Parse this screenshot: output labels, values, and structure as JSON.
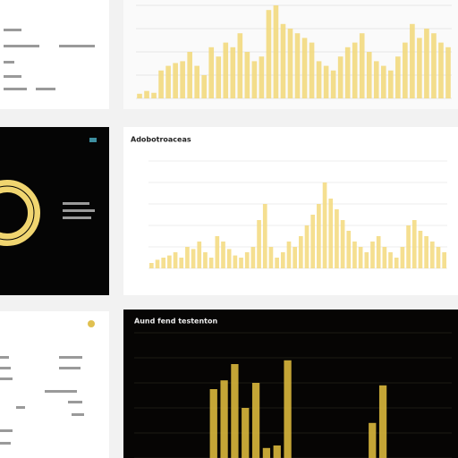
{
  "chart_data": [
    {
      "type": "bar",
      "color": "#f2d97e",
      "values": [
        5,
        8,
        6,
        30,
        35,
        38,
        40,
        50,
        35,
        25,
        55,
        45,
        60,
        55,
        70,
        50,
        40,
        45,
        95,
        100,
        80,
        75,
        70,
        65,
        60,
        40,
        35,
        30,
        45,
        55,
        60,
        70,
        50,
        40,
        35,
        30,
        45,
        60,
        80,
        65,
        75,
        70,
        60,
        55
      ],
      "ylim": [
        0,
        100
      ],
      "yticks": [
        0,
        25,
        50,
        75,
        100
      ],
      "grid": true
    },
    {
      "type": "bar",
      "title": "Adobotroaceas",
      "color": "#f4db84",
      "values": [
        5,
        8,
        10,
        12,
        15,
        10,
        20,
        18,
        25,
        15,
        10,
        30,
        25,
        18,
        12,
        10,
        15,
        20,
        45,
        60,
        20,
        10,
        15,
        25,
        20,
        30,
        40,
        50,
        60,
        80,
        65,
        55,
        45,
        35,
        25,
        20,
        15,
        25,
        30,
        20,
        15,
        10,
        20,
        40,
        45,
        35,
        30,
        25,
        20,
        15
      ],
      "ylim": [
        0,
        100
      ],
      "yticks": [
        0,
        20,
        40,
        60,
        80,
        100
      ],
      "grid": true
    },
    {
      "type": "bar",
      "title": "Aund fend testenton",
      "color": "#d9b73c",
      "values": [
        0,
        0,
        0,
        0,
        0,
        0,
        0,
        55,
        62,
        75,
        40,
        60,
        8,
        10,
        78,
        0,
        0,
        0,
        0,
        0,
        0,
        0,
        28,
        58,
        0,
        0,
        0,
        0,
        0,
        0
      ],
      "ylim": [
        0,
        100
      ],
      "yticks": [
        0,
        20,
        40,
        60,
        80,
        100
      ],
      "grid": true
    }
  ]
}
